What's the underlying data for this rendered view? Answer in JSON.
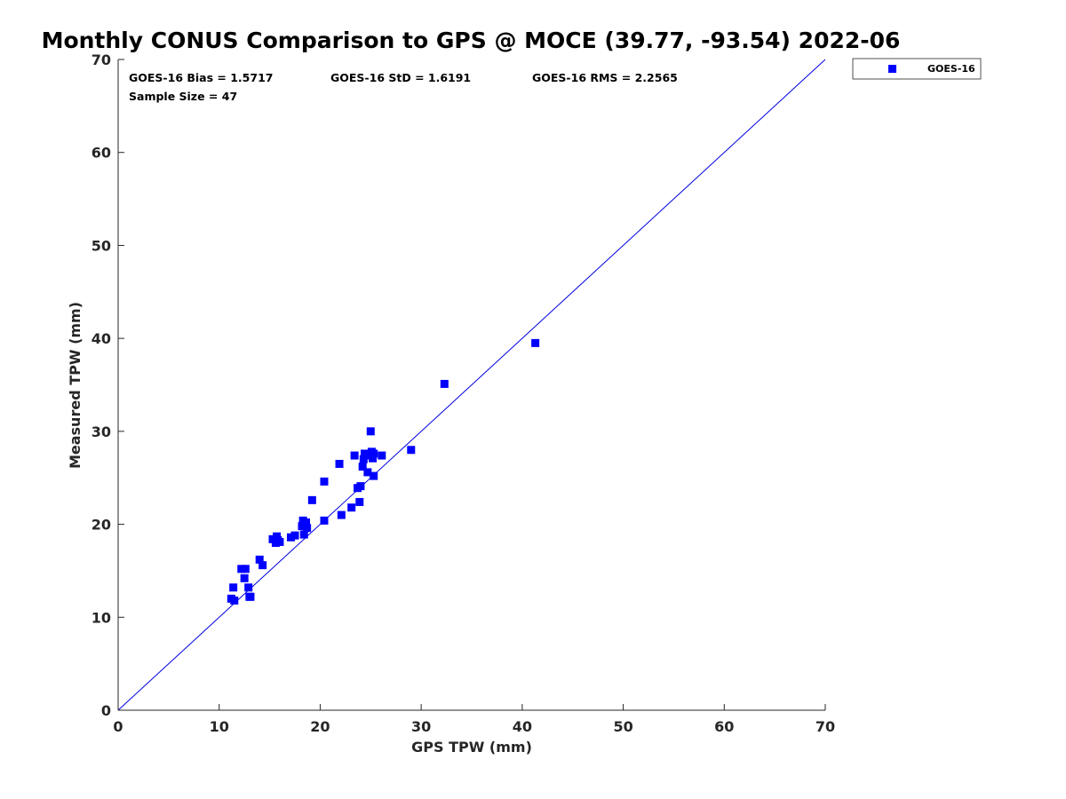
{
  "chart_data": {
    "type": "scatter",
    "title": "Monthly CONUS Comparison to GPS @ MOCE (39.77, -93.54) 2022-06",
    "xlabel": "GPS TPW (mm)",
    "ylabel": "Measured TPW (mm)",
    "xlim": [
      0,
      70
    ],
    "ylim": [
      0,
      70
    ],
    "xticks": [
      0,
      10,
      20,
      30,
      40,
      50,
      60,
      70
    ],
    "yticks": [
      0,
      10,
      20,
      30,
      40,
      50,
      60,
      70
    ],
    "grid": false,
    "legend_position": "outside-top-right",
    "reference_line": {
      "x": [
        0,
        70
      ],
      "y": [
        0,
        70
      ],
      "color": "#0000e0"
    },
    "stats": {
      "bias": "GOES-16 Bias = 1.5717",
      "std": "GOES-16 StD = 1.6191",
      "rms": "GOES-16 RMS = 2.2565",
      "sample_size": "Sample Size = 47"
    },
    "series": [
      {
        "name": "GOES-16",
        "color": "#0000ff",
        "marker": "square",
        "points": [
          [
            11.2,
            12.0
          ],
          [
            11.5,
            11.8
          ],
          [
            11.4,
            13.2
          ],
          [
            12.2,
            15.2
          ],
          [
            12.6,
            15.2
          ],
          [
            12.5,
            14.2
          ],
          [
            12.9,
            13.2
          ],
          [
            13.0,
            12.2
          ],
          [
            13.1,
            12.2
          ],
          [
            14.0,
            16.2
          ],
          [
            14.3,
            15.6
          ],
          [
            15.3,
            18.4
          ],
          [
            15.6,
            18.0
          ],
          [
            15.7,
            18.7
          ],
          [
            15.8,
            18.3
          ],
          [
            16.0,
            18.1
          ],
          [
            17.1,
            18.6
          ],
          [
            17.5,
            18.8
          ],
          [
            18.2,
            19.8
          ],
          [
            18.3,
            20.4
          ],
          [
            18.4,
            18.9
          ],
          [
            18.6,
            20.2
          ],
          [
            18.7,
            19.6
          ],
          [
            19.2,
            22.6
          ],
          [
            20.4,
            20.4
          ],
          [
            20.4,
            24.6
          ],
          [
            21.9,
            26.5
          ],
          [
            22.1,
            21.0
          ],
          [
            23.1,
            21.8
          ],
          [
            23.4,
            27.4
          ],
          [
            23.7,
            23.9
          ],
          [
            23.9,
            22.4
          ],
          [
            24.0,
            24.1
          ],
          [
            24.2,
            26.2
          ],
          [
            24.3,
            27.0
          ],
          [
            24.4,
            27.6
          ],
          [
            24.7,
            25.6
          ],
          [
            24.8,
            27.4
          ],
          [
            25.0,
            30.0
          ],
          [
            25.1,
            27.8
          ],
          [
            25.2,
            27.1
          ],
          [
            25.3,
            25.2
          ],
          [
            25.3,
            27.6
          ],
          [
            26.1,
            27.4
          ],
          [
            29.0,
            28.0
          ],
          [
            32.3,
            35.1
          ],
          [
            41.3,
            39.5
          ]
        ]
      }
    ]
  }
}
